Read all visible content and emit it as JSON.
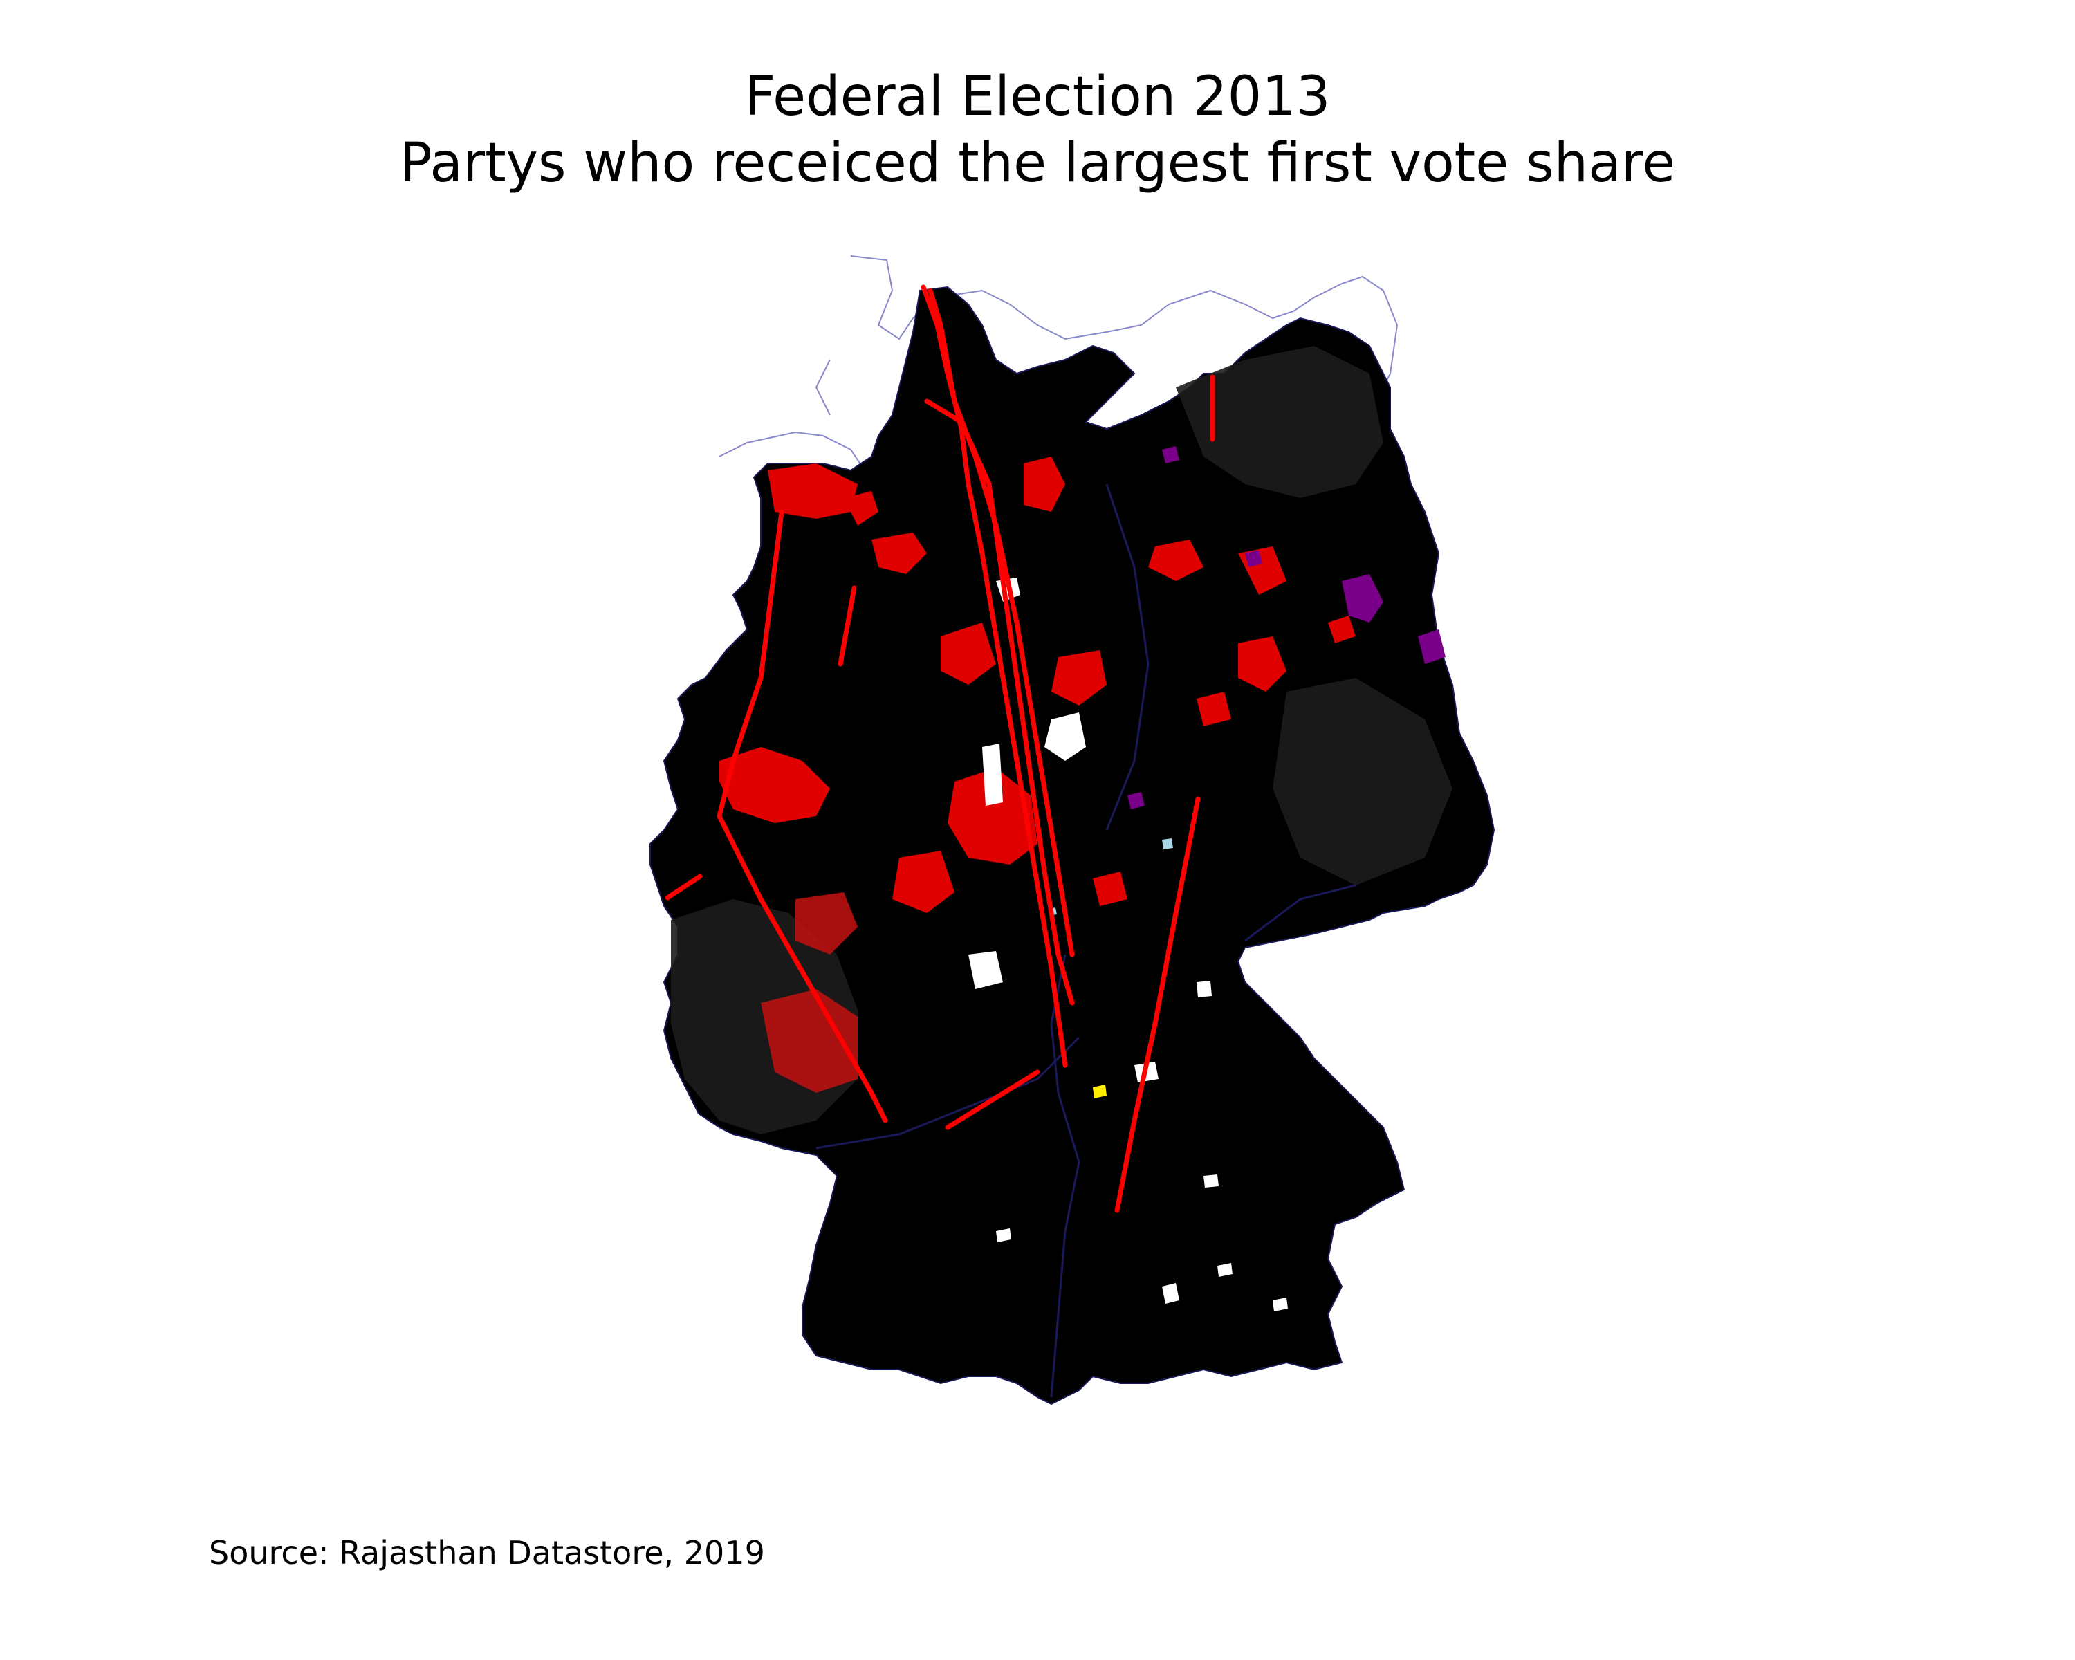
{
  "title": {
    "line1": "Federal Election 2013",
    "line2": "Partys who receiced the largest first vote share"
  },
  "source": "Source: Rajasthan Datastore, 2019",
  "colors": {
    "background": "#ffffff",
    "dominant_fill": "#000000",
    "red_party": "#e00000",
    "purple_party": "#7a008a",
    "white_patch": "#ffffff",
    "yellow_patch": "#ffee00",
    "lightblue_patch": "#a9d6e5",
    "boundary": "#1a1a5a",
    "coast_outline": "#8888cc",
    "line_overlay": "#ff0000"
  }
}
